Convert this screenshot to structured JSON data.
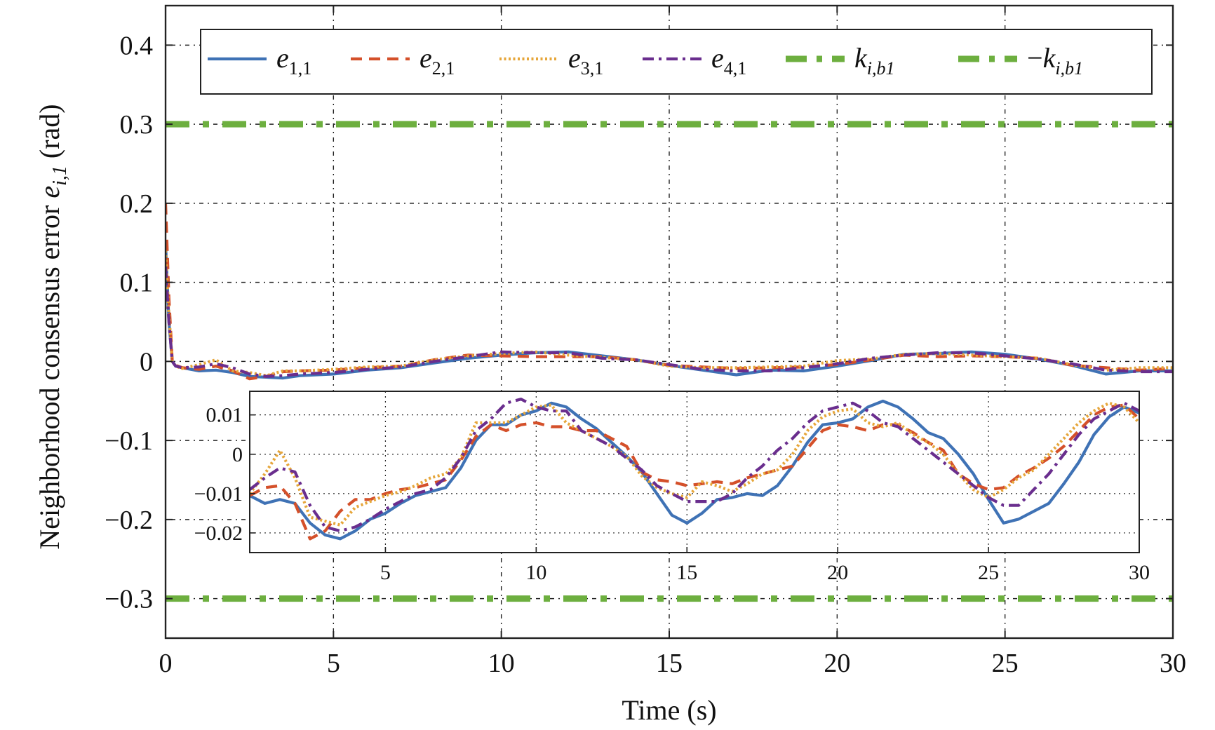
{
  "chart_data": [
    {
      "type": "line",
      "xlabel": "Time (s)",
      "ylabel": "Neighborhood consensus error e_{i,1} (rad)",
      "ylabel_parts": {
        "prefix": "Neighborhood consensus error ",
        "sym": "e",
        "sub": "i,1",
        "suffix": " (rad)"
      },
      "xlim": [
        0,
        30
      ],
      "ylim": [
        -0.35,
        0.45
      ],
      "xticks": [
        0,
        5,
        10,
        15,
        20,
        25,
        30
      ],
      "xtick_labels": [
        "0",
        "5",
        "10",
        "15",
        "20",
        "25",
        "30"
      ],
      "yticks": [
        0.4,
        0.3,
        0.2,
        0.1,
        0,
        -0.1,
        -0.2,
        -0.3
      ],
      "ytick_labels": [
        "0.4",
        "0.3",
        "0.2",
        "0.1",
        "0",
        "−0.1",
        "−0.2",
        "−0.3"
      ],
      "grid": true,
      "legend_position": "top",
      "legend": [
        {
          "sym": "e",
          "sub": "1,1",
          "prefix": ""
        },
        {
          "sym": "e",
          "sub": "2,1",
          "prefix": ""
        },
        {
          "sym": "e",
          "sub": "3,1",
          "prefix": ""
        },
        {
          "sym": "e",
          "sub": "4,1",
          "prefix": ""
        },
        {
          "sym": "k",
          "sub": "i,b1",
          "prefix": ""
        },
        {
          "sym": "k",
          "sub": "i,b1",
          "prefix": "−"
        }
      ],
      "series": [
        {
          "color": "#3F72B5",
          "style": "solid",
          "x": [
            0,
            0.1,
            0.2,
            0.3,
            0.5,
            1,
            1.5,
            2,
            2.5,
            3,
            3.5,
            4,
            5,
            6,
            7,
            8,
            9,
            10,
            11,
            12,
            13,
            14,
            15,
            16,
            17,
            18,
            19,
            20,
            21,
            22,
            23,
            24,
            25,
            26,
            27,
            28,
            29,
            30
          ],
          "y": [
            0.15,
            0.05,
            0.0,
            -0.006,
            -0.008,
            -0.012,
            -0.011,
            -0.014,
            -0.019,
            -0.02,
            -0.021,
            -0.018,
            -0.016,
            -0.011,
            -0.008,
            -0.002,
            0.004,
            0.008,
            0.011,
            0.012,
            0.007,
            0.002,
            -0.005,
            -0.011,
            -0.017,
            -0.011,
            -0.012,
            -0.006,
            0.001,
            0.009,
            0.01,
            0.012,
            0.009,
            0.003,
            -0.005,
            -0.016,
            -0.012,
            -0.012
          ]
        },
        {
          "color": "#D4502A",
          "style": "dashed",
          "x": [
            0,
            0.1,
            0.2,
            0.3,
            0.5,
            1,
            1.5,
            2,
            2.5,
            3,
            3.5,
            4,
            5,
            6,
            7,
            8,
            9,
            10,
            11,
            12,
            13,
            14,
            15,
            16,
            17,
            18,
            19,
            20,
            21,
            22,
            23,
            24,
            25,
            26,
            27,
            28,
            29,
            30
          ],
          "y": [
            0.2,
            0.08,
            0.0,
            -0.005,
            -0.008,
            -0.01,
            -0.006,
            -0.012,
            -0.022,
            -0.019,
            -0.013,
            -0.012,
            -0.011,
            -0.008,
            -0.006,
            0.002,
            0.008,
            0.007,
            0.006,
            0.006,
            0.006,
            0.002,
            -0.005,
            -0.007,
            -0.009,
            -0.008,
            -0.007,
            -0.004,
            0.002,
            0.008,
            0.006,
            0.007,
            0.006,
            0.004,
            -0.005,
            -0.008,
            -0.011,
            -0.009
          ]
        },
        {
          "color": "#E6A63A",
          "style": "dotted",
          "x": [
            0,
            0.1,
            0.2,
            0.3,
            0.5,
            1,
            1.5,
            2,
            2.5,
            3,
            3.5,
            4,
            5,
            6,
            7,
            8,
            9,
            10,
            11,
            12,
            13,
            14,
            15,
            16,
            17,
            18,
            19,
            20,
            21,
            22,
            23,
            24,
            25,
            26,
            27,
            28,
            29,
            30
          ],
          "y": [
            0.14,
            0.06,
            0.0,
            -0.006,
            -0.009,
            -0.004,
            0.002,
            -0.012,
            -0.014,
            -0.018,
            -0.012,
            -0.012,
            -0.01,
            -0.007,
            -0.006,
            0.002,
            0.007,
            0.01,
            0.012,
            0.008,
            0.005,
            0.002,
            -0.006,
            -0.008,
            -0.008,
            -0.007,
            -0.006,
            0.001,
            0.003,
            0.009,
            0.01,
            0.008,
            0.006,
            0.004,
            -0.004,
            -0.011,
            -0.008,
            -0.008
          ]
        },
        {
          "color": "#6A2E8E",
          "style": "dashdot",
          "x": [
            0,
            0.1,
            0.2,
            0.3,
            0.5,
            1,
            1.5,
            2,
            2.5,
            3,
            3.5,
            4,
            5,
            6,
            7,
            8,
            9,
            10,
            11,
            12,
            13,
            14,
            15,
            16,
            17,
            18,
            19,
            20,
            21,
            22,
            23,
            24,
            25,
            26,
            27,
            28,
            29,
            30
          ],
          "y": [
            0.12,
            0.05,
            0.0,
            -0.006,
            -0.008,
            -0.007,
            -0.003,
            -0.008,
            -0.016,
            -0.019,
            -0.018,
            -0.016,
            -0.014,
            -0.01,
            -0.007,
            0.0,
            0.006,
            0.012,
            0.011,
            0.011,
            0.004,
            0.002,
            -0.004,
            -0.01,
            -0.012,
            -0.012,
            -0.008,
            -0.003,
            0.004,
            0.008,
            0.011,
            0.011,
            0.007,
            0.003,
            -0.003,
            -0.011,
            -0.013,
            -0.013
          ]
        },
        {
          "color": "#6DAF3F",
          "style": "thick-dashdot",
          "x": [
            0,
            30
          ],
          "y": [
            0.3,
            0.3
          ]
        },
        {
          "color": "#6DAF3F",
          "style": "thick-dashdot",
          "x": [
            0,
            30
          ],
          "y": [
            -0.3,
            -0.3
          ]
        }
      ]
    },
    {
      "type": "line",
      "role": "inset",
      "xlim": [
        0.5,
        30
      ],
      "ylim": [
        -0.025,
        0.016
      ],
      "xticks": [
        5,
        10,
        15,
        20,
        25,
        30
      ],
      "xtick_labels": [
        "5",
        "10",
        "15",
        "20",
        "25",
        "30"
      ],
      "yticks": [
        0.01,
        0,
        -0.01,
        -0.02
      ],
      "ytick_labels": [
        "0.01",
        "0",
        "−0.01",
        "−0.02"
      ],
      "grid": true,
      "series": [
        {
          "color": "#3F72B5",
          "style": "solid",
          "x": [
            0.5,
            1,
            1.5,
            2,
            2.5,
            3,
            3.5,
            4,
            4.5,
            5,
            5.5,
            6,
            6.5,
            7,
            7.5,
            8,
            8.5,
            9,
            9.5,
            10,
            10.5,
            11,
            11.5,
            12,
            12.5,
            13,
            13.5,
            14,
            14.5,
            15,
            15.5,
            16,
            16.5,
            17,
            17.5,
            18,
            18.5,
            19,
            19.5,
            20,
            20.5,
            21,
            21.5,
            22,
            22.5,
            23,
            23.5,
            24,
            24.5,
            25,
            25.5,
            26,
            26.5,
            27,
            27.5,
            28,
            28.5,
            29,
            29.5,
            30
          ],
          "y": [
            -0.0105,
            -0.0125,
            -0.0115,
            -0.0125,
            -0.0175,
            -0.0205,
            -0.0215,
            -0.0195,
            -0.0165,
            -0.015,
            -0.0125,
            -0.0105,
            -0.0095,
            -0.0085,
            -0.0035,
            0.0035,
            0.0075,
            0.0075,
            0.01,
            0.011,
            0.013,
            0.012,
            0.009,
            0.0065,
            0.003,
            -0.0005,
            -0.0045,
            -0.01,
            -0.0155,
            -0.0175,
            -0.015,
            -0.0115,
            -0.011,
            -0.01,
            -0.0105,
            -0.008,
            -0.003,
            0.003,
            0.0075,
            0.008,
            0.009,
            0.012,
            0.0135,
            0.012,
            0.009,
            0.0055,
            0.004,
            0.0,
            -0.005,
            -0.0115,
            -0.0175,
            -0.0165,
            -0.0145,
            -0.0125,
            -0.0075,
            -0.002,
            0.005,
            0.0095,
            0.012,
            0.0105
          ]
        },
        {
          "color": "#D4502A",
          "style": "dashed",
          "x": [
            0.5,
            1,
            1.5,
            2,
            2.5,
            3,
            3.5,
            4,
            4.5,
            5,
            5.5,
            6,
            6.5,
            7,
            7.5,
            8,
            8.5,
            9,
            9.5,
            10,
            10.5,
            11,
            11.5,
            12,
            12.5,
            13,
            13.5,
            14,
            14.5,
            15,
            15.5,
            16,
            16.5,
            17,
            17.5,
            18,
            18.5,
            19,
            19.5,
            20,
            20.5,
            21,
            21.5,
            22,
            22.5,
            23,
            23.5,
            24,
            24.5,
            25,
            25.5,
            26,
            26.5,
            27,
            27.5,
            28,
            28.5,
            29,
            29.5,
            30
          ],
          "y": [
            -0.0105,
            -0.0085,
            -0.008,
            -0.0125,
            -0.0215,
            -0.0195,
            -0.0145,
            -0.0115,
            -0.0115,
            -0.01,
            -0.009,
            -0.0085,
            -0.0075,
            -0.0065,
            -0.0015,
            0.0045,
            0.0075,
            0.006,
            0.0075,
            0.008,
            0.007,
            0.007,
            0.006,
            0.006,
            0.004,
            0.002,
            -0.0045,
            -0.0065,
            -0.007,
            -0.008,
            -0.0075,
            -0.007,
            -0.0075,
            -0.006,
            -0.005,
            -0.004,
            -0.003,
            0.0015,
            0.006,
            0.0075,
            0.007,
            0.006,
            0.0075,
            0.0075,
            0.0055,
            0.003,
            0.001,
            -0.005,
            -0.0075,
            -0.009,
            -0.0085,
            -0.0055,
            -0.0035,
            -0.001,
            0.002,
            0.006,
            0.01,
            0.012,
            0.0125,
            0.009
          ]
        },
        {
          "color": "#E6A63A",
          "style": "dotted",
          "x": [
            0.5,
            1,
            1.5,
            2,
            2.5,
            3,
            3.5,
            4,
            4.5,
            5,
            5.5,
            6,
            6.5,
            7,
            7.5,
            8,
            8.5,
            9,
            9.5,
            10,
            10.5,
            11,
            11.5,
            12,
            12.5,
            13,
            13.5,
            14,
            14.5,
            15,
            15.5,
            16,
            16.5,
            17,
            17.5,
            18,
            18.5,
            19,
            19.5,
            20,
            20.5,
            21,
            21.5,
            22,
            22.5,
            23,
            23.5,
            24,
            24.5,
            25,
            25.5,
            26,
            26.5,
            27,
            27.5,
            28,
            28.5,
            29,
            29.5,
            30
          ],
          "y": [
            -0.01,
            -0.005,
            0.001,
            -0.006,
            -0.016,
            -0.017,
            -0.018,
            -0.0135,
            -0.012,
            -0.0105,
            -0.0095,
            -0.008,
            -0.006,
            -0.005,
            -0.001,
            0.008,
            0.008,
            0.008,
            0.01,
            0.012,
            0.0125,
            0.008,
            0.006,
            0.004,
            0.002,
            -0.0005,
            -0.0055,
            -0.0085,
            -0.01,
            -0.011,
            -0.007,
            -0.008,
            -0.0095,
            -0.0075,
            -0.005,
            -0.004,
            0.0,
            0.006,
            0.0095,
            0.011,
            0.0115,
            0.008,
            0.007,
            0.008,
            0.005,
            0.003,
            0.0,
            -0.005,
            -0.009,
            -0.011,
            -0.009,
            -0.006,
            -0.004,
            0.0,
            0.004,
            0.008,
            0.011,
            0.013,
            0.012,
            0.008
          ]
        },
        {
          "color": "#6A2E8E",
          "style": "dashdot",
          "x": [
            0.5,
            1,
            1.5,
            2,
            2.5,
            3,
            3.5,
            4,
            4.5,
            5,
            5.5,
            6,
            6.5,
            7,
            7.5,
            8,
            8.5,
            9,
            9.5,
            10,
            10.5,
            11,
            11.5,
            12,
            12.5,
            13,
            13.5,
            14,
            14.5,
            15,
            15.5,
            16,
            16.5,
            17,
            17.5,
            18,
            18.5,
            19,
            19.5,
            20,
            20.5,
            21,
            21.5,
            22,
            22.5,
            23,
            23.5,
            24,
            24.5,
            25,
            25.5,
            26,
            26.5,
            27,
            27.5,
            28,
            28.5,
            29,
            29.5,
            30
          ],
          "y": [
            -0.009,
            -0.006,
            -0.0035,
            -0.0045,
            -0.013,
            -0.0185,
            -0.0195,
            -0.0185,
            -0.0165,
            -0.014,
            -0.012,
            -0.01,
            -0.009,
            -0.006,
            -0.001,
            0.006,
            0.009,
            0.013,
            0.014,
            0.012,
            0.011,
            0.011,
            0.006,
            0.004,
            0.002,
            -0.001,
            -0.004,
            -0.008,
            -0.01,
            -0.012,
            -0.012,
            -0.012,
            -0.01,
            -0.006,
            -0.003,
            0.001,
            0.004,
            0.008,
            0.011,
            0.012,
            0.013,
            0.011,
            0.008,
            0.007,
            0.004,
            0.001,
            -0.002,
            -0.005,
            -0.008,
            -0.011,
            -0.013,
            -0.013,
            -0.009,
            -0.005,
            0.0,
            0.005,
            0.009,
            0.011,
            0.013,
            0.011
          ]
        }
      ]
    }
  ]
}
